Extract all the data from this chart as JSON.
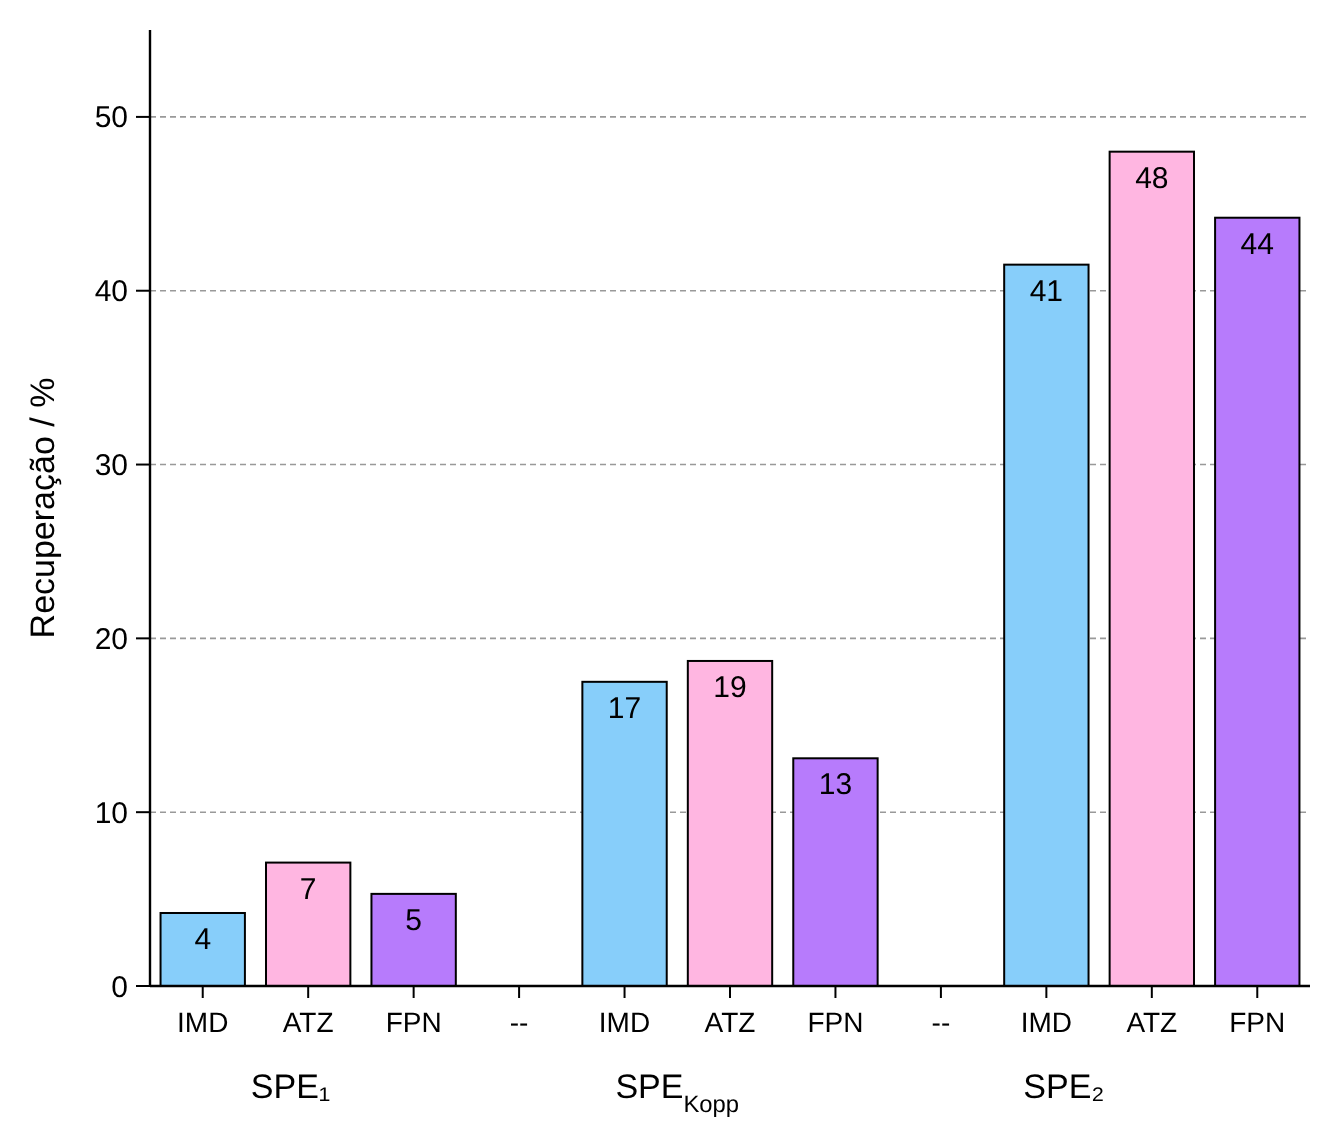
{
  "chart_data": {
    "type": "bar",
    "ylabel": "Recuperação / %",
    "categories": [
      "IMD",
      "ATZ",
      "FPN",
      "--",
      "IMD",
      "ATZ",
      "FPN",
      "--",
      "IMD",
      "ATZ",
      "FPN"
    ],
    "values": [
      4.2,
      7.1,
      5.3,
      null,
      17.5,
      18.7,
      13.1,
      null,
      41.5,
      48.0,
      44.2
    ],
    "colors": [
      "#87cefa",
      "#ffb6e1",
      "#b77bfc",
      null,
      "#87cefa",
      "#ffb6e1",
      "#b77bfc",
      null,
      "#87cefa",
      "#ffb6e1",
      "#b77bfc"
    ],
    "value_labels": [
      "4",
      "7",
      "5",
      null,
      "17",
      "19",
      "13",
      null,
      "41",
      "48",
      "44"
    ],
    "ylim": [
      0,
      55
    ],
    "yticks": [
      0,
      10,
      20,
      30,
      40,
      50
    ],
    "grid": "y",
    "annotations": [
      "SPE₁",
      "SPE$_{Kopp}$",
      "SPE₂"
    ]
  }
}
